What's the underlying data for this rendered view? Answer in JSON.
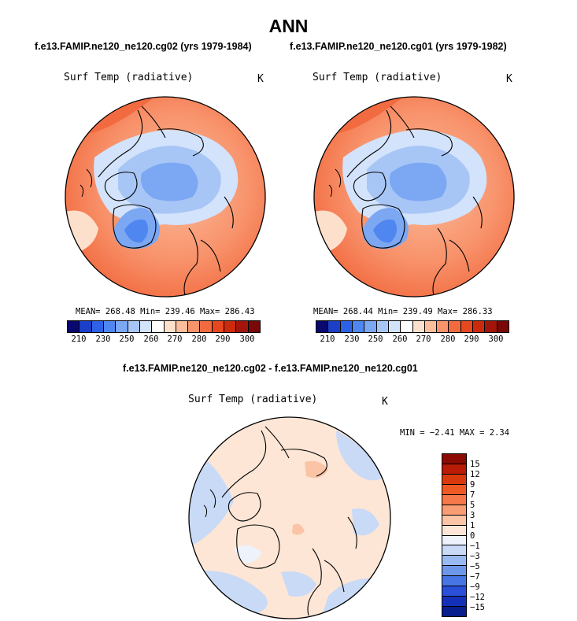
{
  "chart_data": [
    {
      "type": "heatmap",
      "title": "ANN",
      "subtitle": "f.e13.FAMIP.ne120_ne120.cg02 (yrs 1979-1984)",
      "panel_title": "Surf Temp (radiative)",
      "units": "K",
      "stats": {
        "mean": 268.48,
        "min": 239.46,
        "max": 286.43,
        "label": "MEAN= 268.48   Min= 239.46   Max= 286.43"
      },
      "colorbar_ticks": [
        "210",
        "230",
        "250",
        "260",
        "270",
        "280",
        "290",
        "300"
      ]
    },
    {
      "type": "heatmap",
      "subtitle": "f.e13.FAMIP.ne120_ne120.cg01 (yrs 1979-1982)",
      "panel_title": "Surf Temp (radiative)",
      "units": "K",
      "stats": {
        "mean": 268.44,
        "min": 239.49,
        "max": 286.33,
        "label": "MEAN= 268.44   Min= 239.49   Max= 286.33"
      },
      "colorbar_ticks": [
        "210",
        "230",
        "250",
        "260",
        "270",
        "280",
        "290",
        "300"
      ]
    },
    {
      "type": "heatmap",
      "subtitle": "f.e13.FAMIP.ne120_ne120.cg02 - f.e13.FAMIP.ne120_ne120.cg01",
      "panel_title": "Surf Temp (radiative)",
      "units": "K",
      "stats": {
        "min": -2.41,
        "max": 2.34,
        "label": "MIN =  −2.41 MAX =   2.34"
      },
      "colorbar_ticks": [
        "15",
        "12",
        "9",
        "7",
        "5",
        "3",
        "1",
        "0",
        "−1",
        "−3",
        "−5",
        "−7",
        "−9",
        "−12",
        "−15"
      ]
    }
  ],
  "colors": {
    "abs_scale": [
      "#08086e",
      "#1c3fc8",
      "#2d62e6",
      "#4f86ef",
      "#7ba7f3",
      "#a7c6f6",
      "#d2e3fb",
      "#ffffff",
      "#fde0cc",
      "#fbbd9c",
      "#f8936c",
      "#f26a3f",
      "#e8481f",
      "#cc2a0c",
      "#a3150a",
      "#7a0806"
    ],
    "diff_scale": [
      "#8b0a03",
      "#b81b06",
      "#d93a0d",
      "#ef5a24",
      "#f5794a",
      "#f99d75",
      "#fbc4a6",
      "#fde6d6",
      "#edf2fb",
      "#c8daf6",
      "#98b9f1",
      "#6e97ea",
      "#4775e3",
      "#2a4fd8",
      "#1530b8",
      "#071e8c"
    ]
  }
}
